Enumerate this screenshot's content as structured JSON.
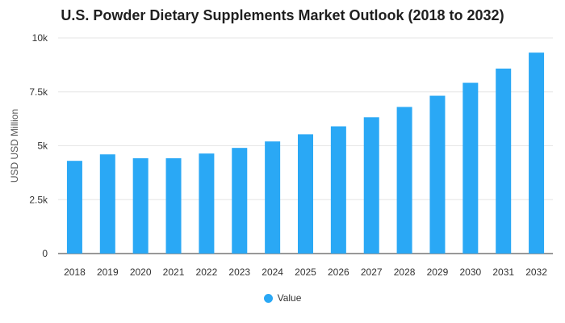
{
  "chart_data": {
    "type": "bar",
    "title": "U.S. Powder Dietary Supplements Market Outlook (2018 to 2032)",
    "xlabel": "",
    "ylabel": "USD USD Million",
    "categories": [
      "2018",
      "2019",
      "2020",
      "2021",
      "2022",
      "2023",
      "2024",
      "2025",
      "2026",
      "2027",
      "2028",
      "2029",
      "2030",
      "2031",
      "2032"
    ],
    "series": [
      {
        "name": "Value",
        "color": "#2aa8f5",
        "values": [
          4300,
          4600,
          4420,
          4420,
          4640,
          4900,
          5200,
          5530,
          5900,
          6320,
          6800,
          7320,
          7920,
          8580,
          9320
        ]
      }
    ],
    "ylim": [
      0,
      10000
    ],
    "yticks": [
      {
        "value": 0,
        "label": "0"
      },
      {
        "value": 2500,
        "label": "2.5k"
      },
      {
        "value": 5000,
        "label": "5k"
      },
      {
        "value": 7500,
        "label": "7.5k"
      },
      {
        "value": 10000,
        "label": "10k"
      }
    ],
    "grid": true,
    "legend": "bottom-center"
  }
}
